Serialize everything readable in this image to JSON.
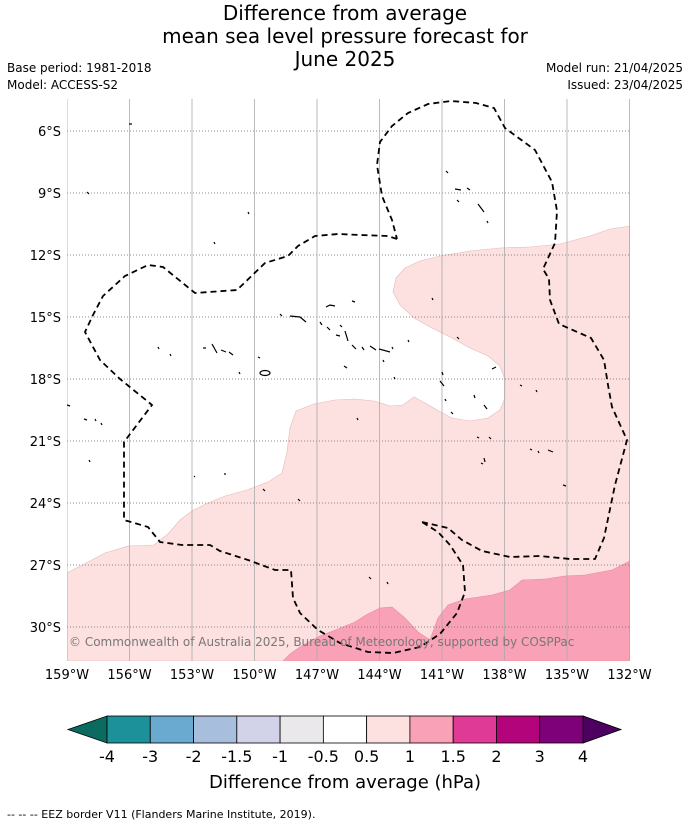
{
  "title": {
    "line1": "Difference from average",
    "line2": "mean sea level pressure forecast for",
    "line3": "June 2025"
  },
  "meta": {
    "base_period": "Base period: 1981-2018",
    "model": "Model: ACCESS-S2",
    "model_run": "Model run: 21/04/2025",
    "issued": "Issued: 23/04/2025"
  },
  "map": {
    "lat_labels": [
      "6°S",
      "9°S",
      "12°S",
      "15°S",
      "18°S",
      "21°S",
      "24°S",
      "27°S",
      "30°S"
    ],
    "lon_labels": [
      "159°W",
      "156°W",
      "153°W",
      "150°W",
      "147°W",
      "144°W",
      "141°W",
      "138°W",
      "135°W",
      "132°W"
    ],
    "copyright": "© Commonwealth of Australia 2025, Bureau of Meteorology, supported by COSPPac"
  },
  "legend": {
    "ticks": [
      "-4",
      "-3",
      "-2",
      "-1.5",
      "-1",
      "-0.5",
      "0.5",
      "1",
      "1.5",
      "2",
      "3",
      "4"
    ],
    "colors": [
      "#1d9199",
      "#6aaad0",
      "#a8bedd",
      "#d2d3e8",
      "#ebe8ec",
      "#ffffff",
      "#fde0e0",
      "#f9a2b7",
      "#e03a97",
      "#b3047b",
      "#7e0179"
    ],
    "low_extend_color": "#0b6b60",
    "high_extend_color": "#4d0060",
    "title": "Difference from average (hPa)"
  },
  "footer": "-- -- -- EEZ border V11 (Flanders Marine Institute, 2019)."
}
